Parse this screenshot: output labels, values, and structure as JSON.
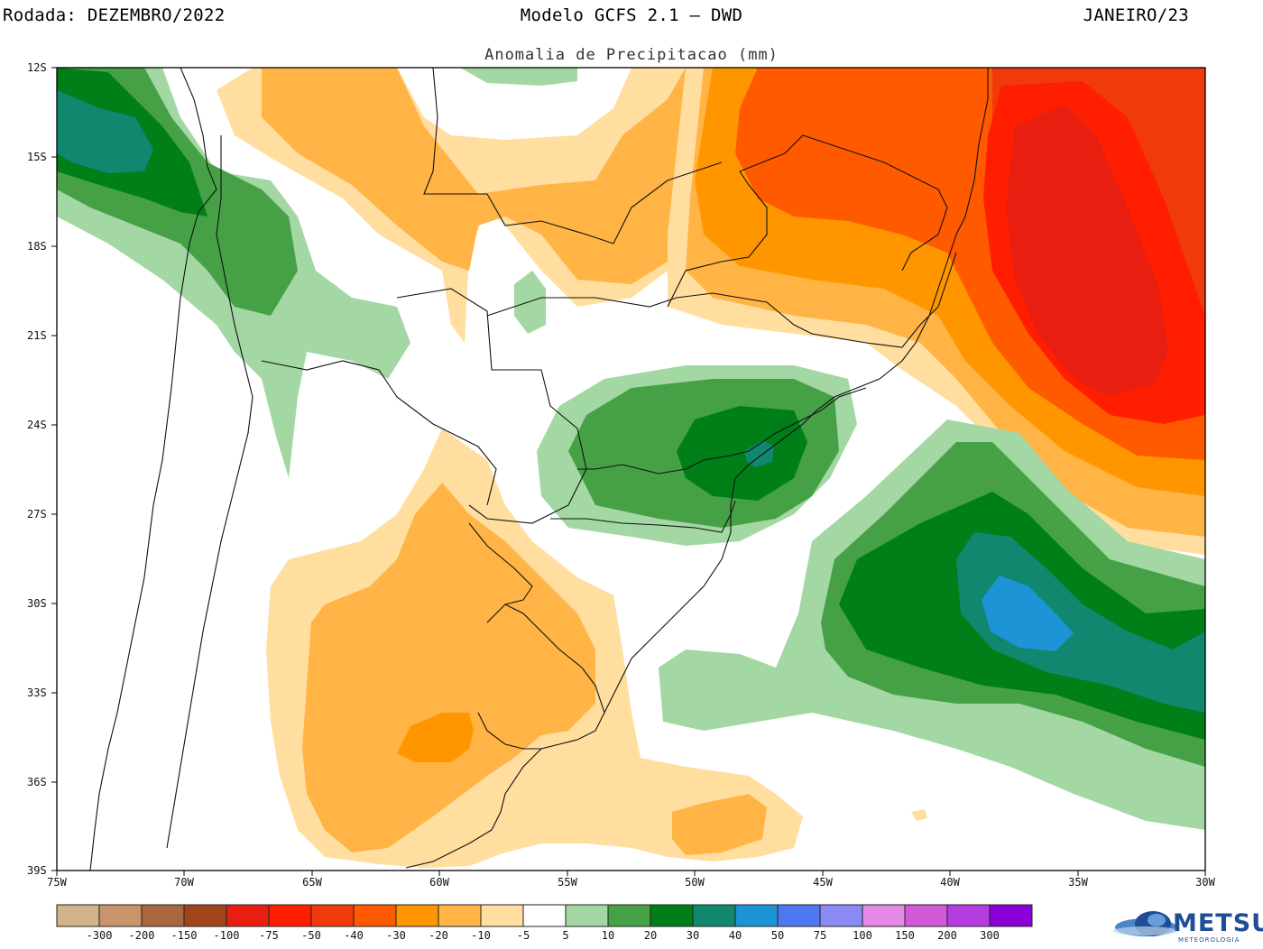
{
  "header": {
    "run_label": "Rodada: DEZEMBRO/2022",
    "model_label": "Modelo GCFS 2.1 — DWD",
    "target_month": "JANEIRO/23"
  },
  "map": {
    "subtitle": "Anomalia de Precipitacao (mm)",
    "lat_ticks": [
      "12S",
      "15S",
      "18S",
      "21S",
      "24S",
      "27S",
      "30S",
      "33S",
      "36S",
      "39S"
    ],
    "lon_ticks": [
      "75W",
      "70W",
      "65W",
      "60W",
      "55W",
      "50W",
      "45W",
      "40W",
      "35W",
      "30W"
    ]
  },
  "colorbar": {
    "labels": [
      "-300",
      "-200",
      "-150",
      "-100",
      "-75",
      "-50",
      "-40",
      "-30",
      "-20",
      "-10",
      "-5",
      "5",
      "10",
      "20",
      "30",
      "40",
      "50",
      "75",
      "100",
      "150",
      "200",
      "300"
    ],
    "colors": [
      "#d2b48c",
      "#c8956a",
      "#a8673c",
      "#a0451a",
      "#e81e10",
      "#ff1e00",
      "#f03a0c",
      "#ff5a00",
      "#ff9600",
      "#ffb445",
      "#ffde9f",
      "#ffffff",
      "#a3d7a3",
      "#46a146",
      "#007f19",
      "#128770",
      "#1c94d6",
      "#4e78f0",
      "#8a8af5",
      "#e68ae8",
      "#d25ad8",
      "#b43ce0",
      "#8a00d6"
    ]
  },
  "brand": {
    "name": "METSUL",
    "tagline": "METEOROLOGIA"
  }
}
